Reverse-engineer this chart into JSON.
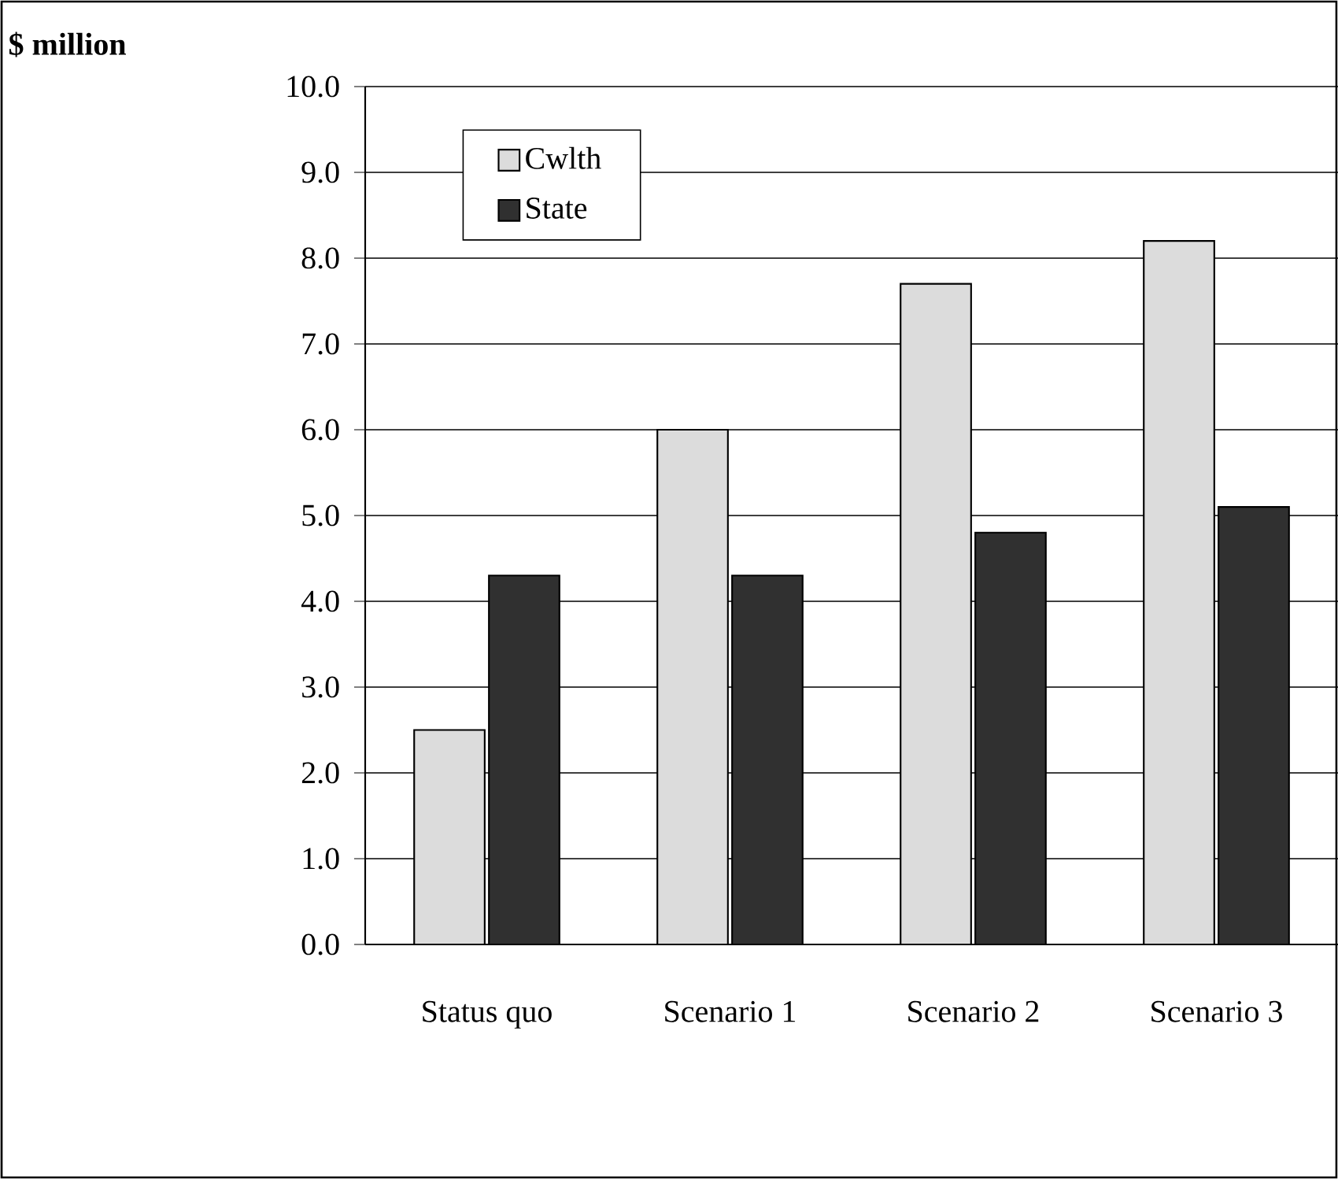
{
  "chart_data": {
    "type": "bar",
    "annotations": [
      "$ million"
    ],
    "categories": [
      "Status quo",
      "Scenario 1",
      "Scenario 2",
      "Scenario 3"
    ],
    "series": [
      {
        "name": "Cwlth",
        "color": "#dcdcdc",
        "values": [
          2.5,
          6.0,
          7.7,
          8.2
        ]
      },
      {
        "name": "State",
        "color": "#303030",
        "values": [
          4.3,
          4.3,
          4.8,
          5.1
        ]
      }
    ],
    "ylim": [
      0,
      10
    ],
    "yticks": [
      {
        "value": 0,
        "label": "0.0"
      },
      {
        "value": 1,
        "label": "1.0"
      },
      {
        "value": 2,
        "label": "2.0"
      },
      {
        "value": 3,
        "label": "3.0"
      },
      {
        "value": 4,
        "label": "4.0"
      },
      {
        "value": 5,
        "label": "5.0"
      },
      {
        "value": 6,
        "label": "6.0"
      },
      {
        "value": 7,
        "label": "7.0"
      },
      {
        "value": 8,
        "label": "8.0"
      },
      {
        "value": 9,
        "label": "9.0"
      },
      {
        "value": 10,
        "label": "10.0"
      }
    ],
    "grid": "y",
    "legend": "top left"
  }
}
